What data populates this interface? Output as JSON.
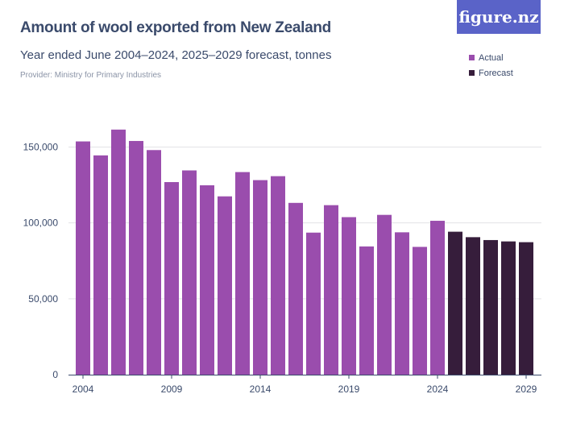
{
  "header": {
    "title": "Amount of wool exported from New Zealand",
    "subtitle": "Year ended June 2004–2024, 2025–2029 forecast, tonnes",
    "provider": "Provider: Ministry for Primary Industries",
    "logo": "figure.nz"
  },
  "chart_data": {
    "type": "bar",
    "title": "Amount of wool exported from New Zealand",
    "subtitle": "Year ended June 2004–2024, 2025–2029 forecast, tonnes",
    "categories": [
      "2004",
      "2005",
      "2006",
      "2007",
      "2008",
      "2009",
      "2010",
      "2011",
      "2012",
      "2013",
      "2014",
      "2015",
      "2016",
      "2017",
      "2018",
      "2019",
      "2020",
      "2021",
      "2022",
      "2023",
      "2024",
      "2025",
      "2026",
      "2027",
      "2028",
      "2029"
    ],
    "values": [
      153700,
      144500,
      161500,
      154000,
      148000,
      126900,
      134600,
      124800,
      117500,
      133500,
      128200,
      130800,
      113200,
      93600,
      111700,
      103800,
      84500,
      105300,
      93800,
      84200,
      101400,
      94200,
      90600,
      88700,
      87800,
      87300
    ],
    "series_type": [
      "Actual",
      "Actual",
      "Actual",
      "Actual",
      "Actual",
      "Actual",
      "Actual",
      "Actual",
      "Actual",
      "Actual",
      "Actual",
      "Actual",
      "Actual",
      "Actual",
      "Actual",
      "Actual",
      "Actual",
      "Actual",
      "Actual",
      "Actual",
      "Actual",
      "Forecast",
      "Forecast",
      "Forecast",
      "Forecast",
      "Forecast"
    ],
    "legend": [
      {
        "name": "Actual",
        "color": "#9a4dad"
      },
      {
        "name": "Forecast",
        "color": "#361d3b"
      }
    ],
    "legend_placement": "top-right",
    "xticks": [
      "2004",
      "2009",
      "2014",
      "2019",
      "2024",
      "2029"
    ],
    "yticks": [
      0,
      50000,
      100000,
      150000
    ],
    "ytick_labels": [
      "0",
      "50,000",
      "100,000",
      "150,000"
    ],
    "ylim": [
      0,
      150000
    ],
    "grid": true
  }
}
